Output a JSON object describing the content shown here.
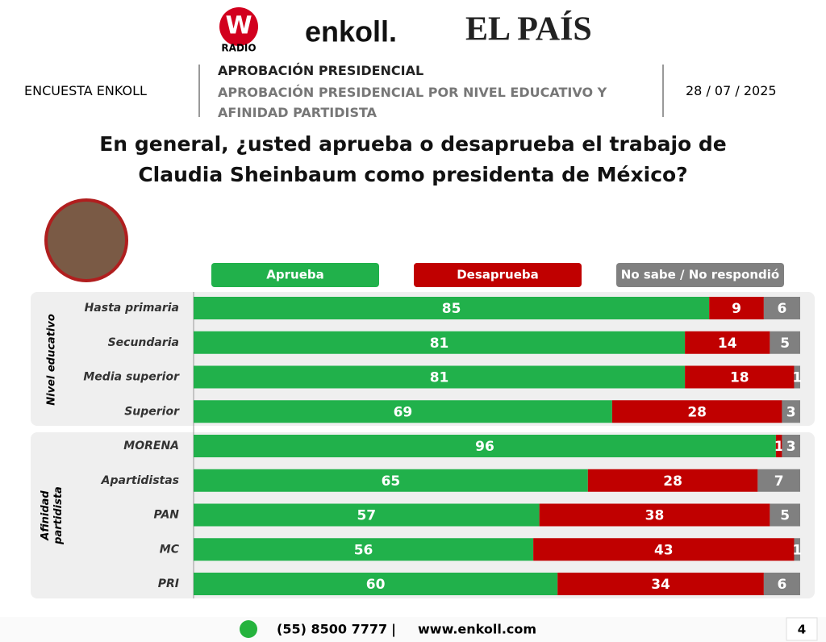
{
  "logos": {
    "wradio_mark": "W",
    "wradio_name": "RADIO",
    "enkoll": "enkoll.",
    "elpais": "EL PAÍS"
  },
  "header": {
    "survey": "ENCUESTA ENKOLL",
    "title": "APROBACIÓN PRESIDENCIAL",
    "subtitle": "APROBACIÓN PRESIDENCIAL POR NIVEL EDUCATIVO Y AFINIDAD PARTIDISTA",
    "date": "28 / 07 / 2025"
  },
  "chart_data": {
    "type": "stacked-bar-horizontal",
    "title": "En general, ¿usted aprueba o desaprueba el trabajo de Claudia Sheinbaum como presidenta de México?",
    "group_labels": [
      "Nivel educativo",
      "Afinidad partidista"
    ],
    "categories": [
      "Hasta primaria",
      "Secundaria",
      "Media superior",
      "Superior",
      "MORENA",
      "Apartidistas",
      "PAN",
      "MC",
      "PRI"
    ],
    "series": [
      {
        "name": "Aprueba",
        "color": "#21b14b",
        "values": [
          85,
          81,
          81,
          69,
          96,
          65,
          57,
          56,
          60
        ]
      },
      {
        "name": "Desaprueba",
        "color": "#c00000",
        "values": [
          9,
          14,
          18,
          28,
          1,
          28,
          38,
          43,
          34
        ]
      },
      {
        "name": "No sabe / No respondió",
        "color": "#808080",
        "values": [
          6,
          5,
          1,
          3,
          3,
          7,
          5,
          1,
          6
        ]
      }
    ]
  },
  "footer": {
    "phone": "(55) 8500 7777",
    "separator": "|",
    "website": "www.enkoll.com",
    "page": "4"
  }
}
